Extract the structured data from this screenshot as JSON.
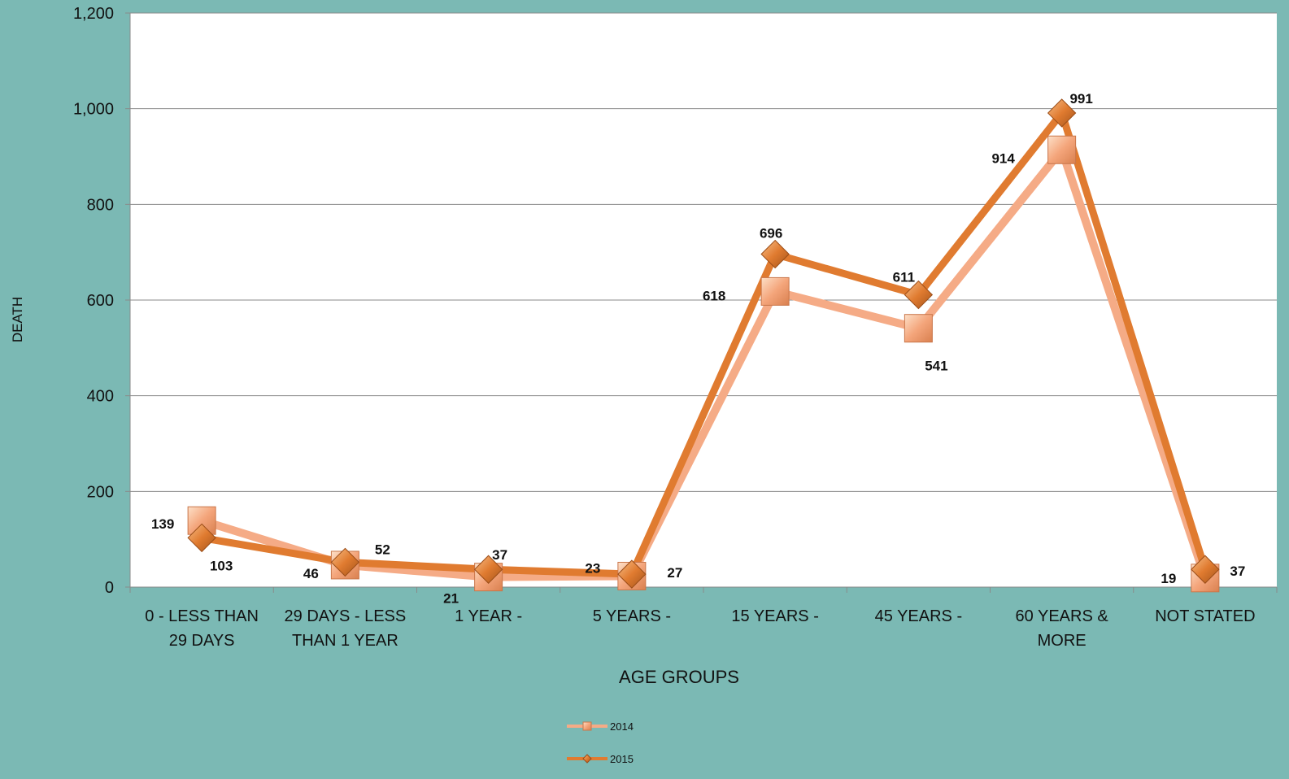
{
  "chart_data": {
    "type": "line",
    "xlabel": "AGE GROUPS",
    "ylabel": "DEATH",
    "ylim": [
      0,
      1200
    ],
    "yticks": [
      "0",
      "200",
      "400",
      "600",
      "800",
      "1,000",
      "1,200"
    ],
    "categories": [
      [
        "0 - LESS THAN",
        "29 DAYS"
      ],
      [
        "29 DAYS  - LESS",
        "THAN  1 YEAR"
      ],
      [
        "1 YEAR    -"
      ],
      [
        "5 YEARS  -"
      ],
      [
        "15 YEARS -"
      ],
      [
        "45 YEARS  -"
      ],
      [
        "60 YEARS &",
        "MORE"
      ],
      [
        "NOT STATED"
      ]
    ],
    "series": [
      {
        "name": "2014",
        "values": [
          139,
          46,
          21,
          23,
          618,
          541,
          914,
          19
        ],
        "color": "#f5ab86",
        "marker": "square"
      },
      {
        "name": "2015",
        "values": [
          103,
          52,
          37,
          27,
          696,
          611,
          991,
          37
        ],
        "color": "#e07b30",
        "marker": "diamond"
      }
    ],
    "grid": true,
    "legend_position": "bottom"
  }
}
